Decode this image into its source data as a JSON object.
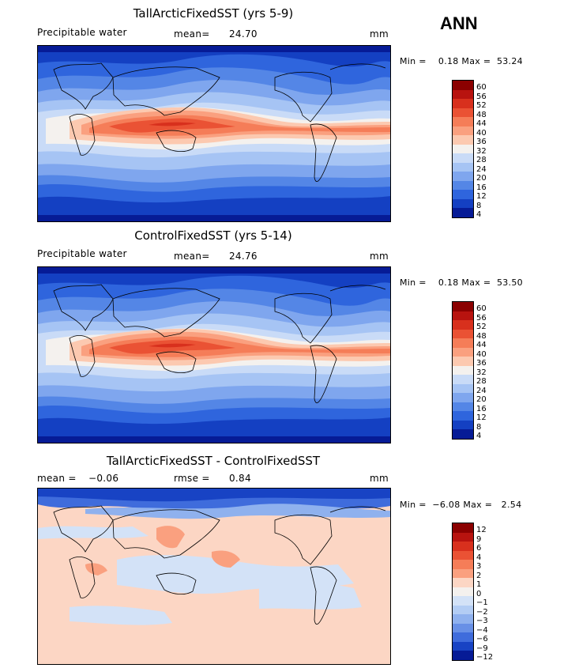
{
  "season": "ANN",
  "panels": [
    {
      "title": "TallArcticFixedSST (yrs 5-9)",
      "variable": "Precipitable water",
      "stat_label": "mean=",
      "stat_value": "24.70",
      "units": "mm",
      "minmax": "Min =    0.18 Max =  53.24",
      "levels": [
        "60",
        "56",
        "52",
        "48",
        "44",
        "40",
        "36",
        "32",
        "28",
        "24",
        "20",
        "16",
        "12",
        "8",
        "4"
      ],
      "colors": [
        "#8b0000",
        "#b8130f",
        "#d8301d",
        "#ea5234",
        "#f57d58",
        "#faa07f",
        "#fcc9b0",
        "#f4f1ee",
        "#c9dbf7",
        "#a6c4f4",
        "#7fa6ee",
        "#5486e6",
        "#2f65dd",
        "#1440c2",
        "#061b96"
      ]
    },
    {
      "title": "ControlFixedSST (yrs 5-14)",
      "variable": "Precipitable water",
      "stat_label": "mean=",
      "stat_value": "24.76",
      "units": "mm",
      "minmax": "Min =    0.18 Max =  53.50",
      "levels": [
        "60",
        "56",
        "52",
        "48",
        "44",
        "40",
        "36",
        "32",
        "28",
        "24",
        "20",
        "16",
        "12",
        "8",
        "4"
      ],
      "colors": [
        "#8b0000",
        "#b8130f",
        "#d8301d",
        "#ea5234",
        "#f57d58",
        "#faa07f",
        "#fcc9b0",
        "#f4f1ee",
        "#c9dbf7",
        "#a6c4f4",
        "#7fa6ee",
        "#5486e6",
        "#2f65dd",
        "#1440c2",
        "#061b96"
      ]
    },
    {
      "title": "TallArcticFixedSST - ControlFixedSST",
      "stat_label": "mean =",
      "stat_value": "−0.06",
      "rmse_label": "rmse =",
      "rmse_value": "0.84",
      "units": "mm",
      "minmax": "Min =  −6.08 Max =   2.54",
      "levels": [
        "12",
        "9",
        "6",
        "4",
        "3",
        "2",
        "1",
        "0",
        "−1",
        "−2",
        "−3",
        "−4",
        "−6",
        "−9",
        "−12"
      ],
      "colors": [
        "#8b0000",
        "#b8130f",
        "#d8301d",
        "#ea5234",
        "#f57d58",
        "#faa07f",
        "#fcd6c4",
        "#f4f1ee",
        "#d3e2f7",
        "#b3cdf4",
        "#8fb1ee",
        "#6890e6",
        "#3f6cdc",
        "#1843c4",
        "#061b96"
      ]
    }
  ]
}
